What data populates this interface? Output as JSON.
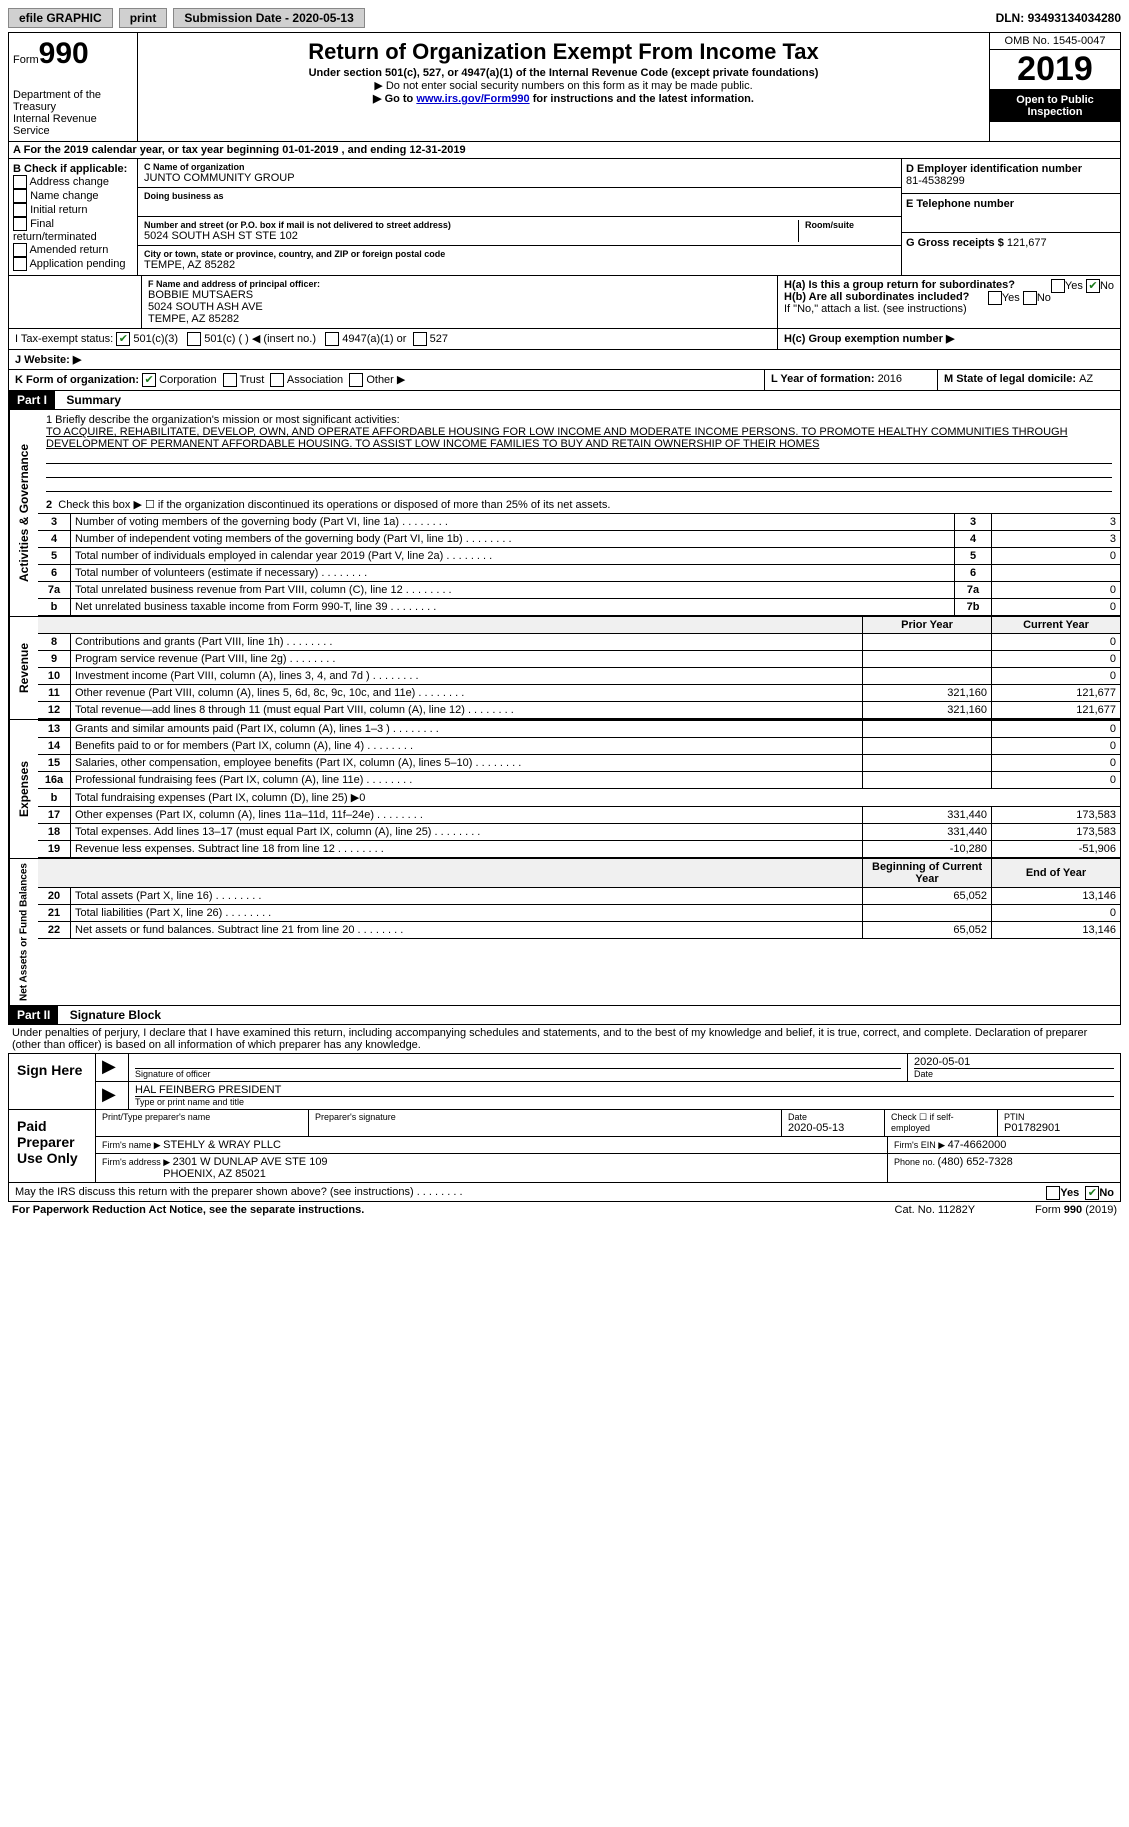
{
  "topbar": {
    "efile": "efile GRAPHIC",
    "print": "print",
    "submission_label": "Submission Date - ",
    "submission_date": "2020-05-13",
    "dln_label": "DLN: ",
    "dln": "93493134034280"
  },
  "header": {
    "form_label": "Form",
    "form_number": "990",
    "dept": "Department of the Treasury\nInternal Revenue Service",
    "title": "Return of Organization Exempt From Income Tax",
    "subtitle": "Under section 501(c), 527, or 4947(a)(1) of the Internal Revenue Code (except private foundations)",
    "note1": "▶ Do not enter social security numbers on this form as it may be made public.",
    "note2_a": "▶ Go to ",
    "note2_link": "www.irs.gov/Form990",
    "note2_b": " for instructions and the latest information.",
    "omb": "OMB No. 1545-0047",
    "year": "2019",
    "otp": "Open to Public Inspection"
  },
  "taxyear": "For the 2019 calendar year, or tax year beginning 01-01-2019   , and ending 12-31-2019",
  "sectionB": {
    "title": "B Check if applicable:",
    "items": [
      "Address change",
      "Name change",
      "Initial return",
      "Final return/terminated",
      "Amended return",
      "Application pending"
    ]
  },
  "sectionC": {
    "name_label": "C Name of organization",
    "name": "JUNTO COMMUNITY GROUP",
    "dba_label": "Doing business as",
    "addr_label": "Number and street (or P.O. box if mail is not delivered to street address)",
    "addr": "5024 SOUTH ASH ST STE 102",
    "room_label": "Room/suite",
    "city_label": "City or town, state or province, country, and ZIP or foreign postal code",
    "city": "TEMPE, AZ  85282"
  },
  "sectionD": {
    "ein_label": "D Employer identification number",
    "ein": "81-4538299",
    "phone_label": "E Telephone number"
  },
  "sectionG": {
    "label": "G Gross receipts $ ",
    "value": "121,677"
  },
  "sectionF": {
    "label": "F  Name and address of principal officer:",
    "name": "BOBBIE MUTSAERS",
    "addr1": "5024 SOUTH ASH AVE",
    "addr2": "TEMPE, AZ  85282"
  },
  "sectionH": {
    "a": "H(a)  Is this a group return for subordinates?",
    "b": "H(b)  Are all subordinates included?",
    "note": "If \"No,\" attach a list. (see instructions)",
    "c": "H(c)  Group exemption number ▶",
    "yes": "Yes",
    "no": "No"
  },
  "taxexempt": {
    "label": "I  Tax-exempt status:",
    "opts": [
      "501(c)(3)",
      "501(c) (  ) ◀ (insert no.)",
      "4947(a)(1) or",
      "527"
    ]
  },
  "website": "J  Website: ▶",
  "sectionK": {
    "label": "K Form of organization:",
    "opts": [
      "Corporation",
      "Trust",
      "Association",
      "Other ▶"
    ]
  },
  "sectionL": {
    "label": "L Year of formation: ",
    "value": "2016"
  },
  "sectionM": {
    "label": "M State of legal domicile: ",
    "value": "AZ"
  },
  "part1": {
    "header": "Part I",
    "title": "Summary",
    "mission_label": "1  Briefly describe the organization's mission or most significant activities:",
    "mission": "TO ACQUIRE, REHABILITATE, DEVELOP, OWN, AND OPERATE AFFORDABLE HOUSING FOR LOW INCOME AND MODERATE INCOME PERSONS. TO PROMOTE HEALTHY COMMUNITIES THROUGH DEVELOPMENT OF PERMANENT AFFORDABLE HOUSING. TO ASSIST LOW INCOME FAMILIES TO BUY AND RETAIN OWNERSHIP OF THEIR HOMES",
    "governance_label": "Activities & Governance",
    "revenue_label": "Revenue",
    "expenses_label": "Expenses",
    "netassets_label": "Net Assets or Fund Balances",
    "line2": "Check this box ▶ ☐  if the organization discontinued its operations or disposed of more than 25% of its net assets.",
    "prior_year": "Prior Year",
    "current_year": "Current Year",
    "boy": "Beginning of Current Year",
    "eoy": "End of Year",
    "lines_gov": [
      {
        "n": "3",
        "d": "Number of voting members of the governing body (Part VI, line 1a)",
        "l": "3",
        "v": "3"
      },
      {
        "n": "4",
        "d": "Number of independent voting members of the governing body (Part VI, line 1b)",
        "l": "4",
        "v": "3"
      },
      {
        "n": "5",
        "d": "Total number of individuals employed in calendar year 2019 (Part V, line 2a)",
        "l": "5",
        "v": "0"
      },
      {
        "n": "6",
        "d": "Total number of volunteers (estimate if necessary)",
        "l": "6",
        "v": ""
      },
      {
        "n": "7a",
        "d": "Total unrelated business revenue from Part VIII, column (C), line 12",
        "l": "7a",
        "v": "0"
      },
      {
        "n": "b",
        "d": "Net unrelated business taxable income from Form 990-T, line 39",
        "l": "7b",
        "v": "0"
      }
    ],
    "lines_rev": [
      {
        "n": "8",
        "d": "Contributions and grants (Part VIII, line 1h)",
        "p": "",
        "c": "0"
      },
      {
        "n": "9",
        "d": "Program service revenue (Part VIII, line 2g)",
        "p": "",
        "c": "0"
      },
      {
        "n": "10",
        "d": "Investment income (Part VIII, column (A), lines 3, 4, and 7d )",
        "p": "",
        "c": "0"
      },
      {
        "n": "11",
        "d": "Other revenue (Part VIII, column (A), lines 5, 6d, 8c, 9c, 10c, and 11e)",
        "p": "321,160",
        "c": "121,677"
      },
      {
        "n": "12",
        "d": "Total revenue—add lines 8 through 11 (must equal Part VIII, column (A), line 12)",
        "p": "321,160",
        "c": "121,677"
      }
    ],
    "lines_exp": [
      {
        "n": "13",
        "d": "Grants and similar amounts paid (Part IX, column (A), lines 1–3 )",
        "p": "",
        "c": "0"
      },
      {
        "n": "14",
        "d": "Benefits paid to or for members (Part IX, column (A), line 4)",
        "p": "",
        "c": "0"
      },
      {
        "n": "15",
        "d": "Salaries, other compensation, employee benefits (Part IX, column (A), lines 5–10)",
        "p": "",
        "c": "0"
      },
      {
        "n": "16a",
        "d": "Professional fundraising fees (Part IX, column (A), line 11e)",
        "p": "",
        "c": "0"
      },
      {
        "n": "b",
        "d": "Total fundraising expenses (Part IX, column (D), line 25) ▶0",
        "p": null,
        "c": null
      },
      {
        "n": "17",
        "d": "Other expenses (Part IX, column (A), lines 11a–11d, 11f–24e)",
        "p": "331,440",
        "c": "173,583"
      },
      {
        "n": "18",
        "d": "Total expenses. Add lines 13–17 (must equal Part IX, column (A), line 25)",
        "p": "331,440",
        "c": "173,583"
      },
      {
        "n": "19",
        "d": "Revenue less expenses. Subtract line 18 from line 12",
        "p": "-10,280",
        "c": "-51,906"
      }
    ],
    "lines_net": [
      {
        "n": "20",
        "d": "Total assets (Part X, line 16)",
        "p": "65,052",
        "c": "13,146"
      },
      {
        "n": "21",
        "d": "Total liabilities (Part X, line 26)",
        "p": "",
        "c": "0"
      },
      {
        "n": "22",
        "d": "Net assets or fund balances. Subtract line 21 from line 20",
        "p": "65,052",
        "c": "13,146"
      }
    ]
  },
  "part2": {
    "header": "Part II",
    "title": "Signature Block",
    "perjury": "Under penalties of perjury, I declare that I have examined this return, including accompanying schedules and statements, and to the best of my knowledge and belief, it is true, correct, and complete. Declaration of preparer (other than officer) is based on all information of which preparer has any knowledge.",
    "sign_here": "Sign Here",
    "sig_officer": "Signature of officer",
    "sig_date_label": "Date",
    "sig_date": "2020-05-01",
    "officer_name": "HAL FEINBERG PRESIDENT",
    "officer_type": "Type or print name and title",
    "paid_preparer": "Paid Preparer Use Only",
    "pp_name_label": "Print/Type preparer's name",
    "pp_sig_label": "Preparer's signature",
    "pp_date_label": "Date",
    "pp_date": "2020-05-13",
    "pp_check": "Check ☐ if self-employed",
    "ptin_label": "PTIN",
    "ptin": "P01782901",
    "firm_name_label": "Firm's name   ▶ ",
    "firm_name": "STEHLY & WRAY PLLC",
    "firm_ein_label": "Firm's EIN ▶ ",
    "firm_ein": "47-4662000",
    "firm_addr_label": "Firm's address ▶ ",
    "firm_addr": "2301 W DUNLAP AVE STE 109",
    "firm_city": "PHOENIX, AZ  85021",
    "firm_phone_label": "Phone no. ",
    "firm_phone": "(480) 652-7328",
    "irs_discuss": "May the IRS discuss this return with the preparer shown above? (see instructions)"
  },
  "footer": {
    "pra": "For Paperwork Reduction Act Notice, see the separate instructions.",
    "cat": "Cat. No. 11282Y",
    "form": "Form 990 (2019)"
  }
}
